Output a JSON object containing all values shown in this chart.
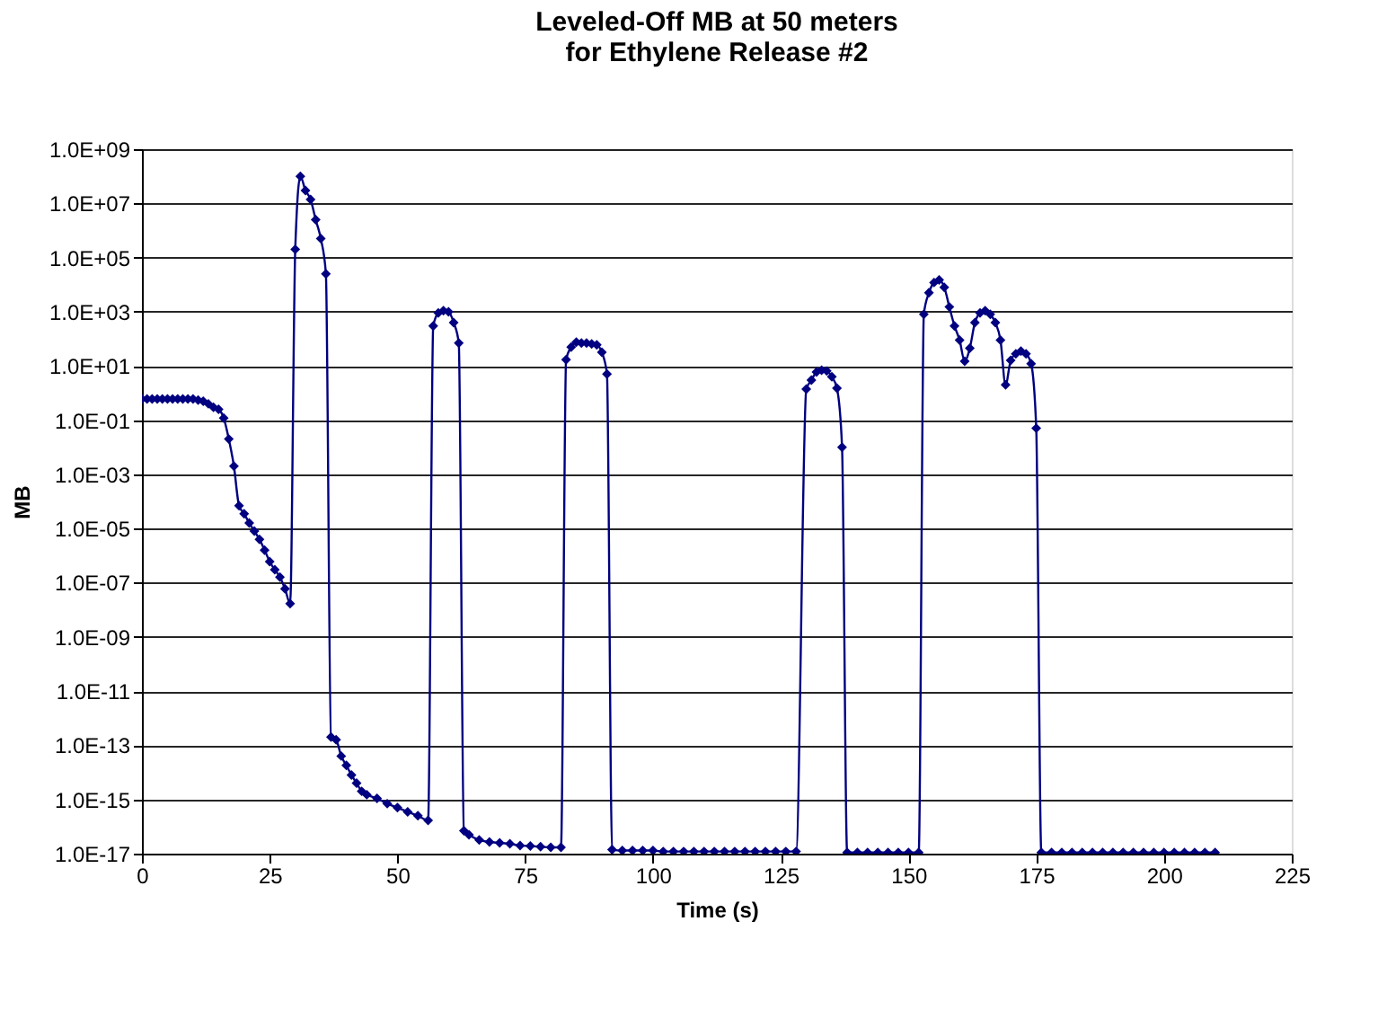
{
  "chart_data": {
    "type": "line",
    "title": "Leveled-Off MB at 50 meters\nfor Ethylene Release #2",
    "xlabel": "Time (s)",
    "ylabel": "MB",
    "x": [
      0,
      1,
      2,
      3,
      4,
      5,
      6,
      7,
      8,
      9,
      10,
      11,
      12,
      13,
      14,
      15,
      16,
      17,
      18,
      19,
      20,
      21,
      22,
      23,
      24,
      25,
      26,
      27,
      28,
      29,
      30,
      31,
      32,
      33,
      34,
      35,
      36,
      37,
      38,
      39,
      40,
      41,
      42,
      43,
      44,
      46,
      48,
      50,
      52,
      54,
      56,
      57,
      58,
      59,
      60,
      61,
      62,
      63,
      64,
      66,
      68,
      70,
      72,
      74,
      76,
      78,
      80,
      82,
      83,
      84,
      85,
      86,
      87,
      88,
      89,
      90,
      91,
      92,
      94,
      96,
      98,
      100,
      102,
      104,
      106,
      108,
      110,
      112,
      114,
      116,
      118,
      120,
      122,
      124,
      126,
      128,
      130,
      131,
      132,
      133,
      134,
      135,
      136,
      137,
      138,
      140,
      142,
      144,
      146,
      148,
      150,
      152,
      153,
      154,
      155,
      156,
      157,
      158,
      159,
      160,
      161,
      162,
      163,
      164,
      165,
      166,
      167,
      168,
      169,
      170,
      171,
      172,
      173,
      174,
      175,
      176,
      178,
      180,
      182,
      184,
      186,
      188,
      190,
      192,
      194,
      196,
      198,
      200,
      202,
      204,
      206,
      208,
      210
    ],
    "series": [
      {
        "color": "#000080",
        "values": [
          0.6,
          0.6,
          0.6,
          0.6,
          0.6,
          0.6,
          0.6,
          0.6,
          0.6,
          0.6,
          0.6,
          0.55,
          0.5,
          0.4,
          0.3,
          0.25,
          0.12,
          0.02,
          0.002,
          7e-05,
          3.5e-05,
          1.6e-05,
          8e-06,
          4e-06,
          1.6e-06,
          6e-07,
          3e-07,
          1.6e-07,
          6e-08,
          1.7e-08,
          200000.0,
          100000000.0,
          30000000.0,
          14000000.0,
          2500000.0,
          500000.0,
          25000.0,
          2e-13,
          1.6e-13,
          4e-14,
          1.8e-14,
          8e-15,
          4e-15,
          2e-15,
          1.5e-15,
          1.1e-15,
          7e-16,
          5e-16,
          3.5e-16,
          2.5e-16,
          1.7e-16,
          300.0,
          900.0,
          1100.0,
          1000.0,
          400.0,
          70.0,
          7e-17,
          5e-17,
          3.2e-17,
          2.7e-17,
          2.5e-17,
          2.3e-17,
          2e-17,
          1.9e-17,
          1.8e-17,
          1.7e-17,
          1.7e-17,
          17.0,
          50.0,
          75.0,
          70.0,
          70.0,
          65.0,
          60.0,
          32.0,
          5,
          1.4e-17,
          1.3e-17,
          1.3e-17,
          1.3e-17,
          1.3e-17,
          1.2e-17,
          1.2e-17,
          1.2e-17,
          1.2e-17,
          1.2e-17,
          1.2e-17,
          1.2e-17,
          1.2e-17,
          1.2e-17,
          1.2e-17,
          1.2e-17,
          1.2e-17,
          1.2e-17,
          1.2e-17,
          1.4,
          3,
          6,
          7,
          6.5,
          4,
          1.5,
          0.01,
          1.1e-17,
          1.1e-17,
          1.1e-17,
          1.1e-17,
          1.1e-17,
          1.1e-17,
          1.1e-17,
          1.1e-17,
          800.0,
          5000.0,
          12000.0,
          15000.0,
          8000.0,
          1500.0,
          300.0,
          90.0,
          15.0,
          45.0,
          400.0,
          900.0,
          1100.0,
          800.0,
          400.0,
          90.0,
          2,
          16.0,
          28.0,
          35.0,
          28.0,
          12.0,
          0.05,
          1.1e-17,
          1.1e-17,
          1.1e-17,
          1.1e-17,
          1.1e-17,
          1.1e-17,
          1.1e-17,
          1.1e-17,
          1.1e-17,
          1.1e-17,
          1.1e-17,
          1.1e-17,
          1.1e-17,
          1.1e-17,
          1.1e-17,
          1.1e-17,
          1.1e-17,
          1.1e-17
        ]
      }
    ],
    "xlim": [
      0,
      225
    ],
    "xticks": [
      0,
      25,
      50,
      75,
      100,
      125,
      150,
      175,
      200,
      225
    ],
    "ylim": [
      1e-17,
      1000000000.0
    ],
    "yticks": [
      {
        "value": 1000000000.0,
        "label": "1.0E+09"
      },
      {
        "value": 10000000.0,
        "label": "1.0E+07"
      },
      {
        "value": 100000.0,
        "label": "1.0E+05"
      },
      {
        "value": 1000.0,
        "label": "1.0E+03"
      },
      {
        "value": 10.0,
        "label": "1.0E+01"
      },
      {
        "value": 0.1,
        "label": "1.0E-01"
      },
      {
        "value": 0.001,
        "label": "1.0E-03"
      },
      {
        "value": 1e-05,
        "label": "1.0E-05"
      },
      {
        "value": 1e-07,
        "label": "1.0E-07"
      },
      {
        "value": 1e-09,
        "label": "1.0E-09"
      },
      {
        "value": 1e-11,
        "label": "1.0E-11"
      },
      {
        "value": 1e-13,
        "label": "1.0E-13"
      },
      {
        "value": 1e-15,
        "label": "1.0E-15"
      },
      {
        "value": 1e-17,
        "label": "1.0E-17"
      }
    ],
    "log": true,
    "grid": "y",
    "marker": "diamond",
    "line_style": "solid"
  }
}
